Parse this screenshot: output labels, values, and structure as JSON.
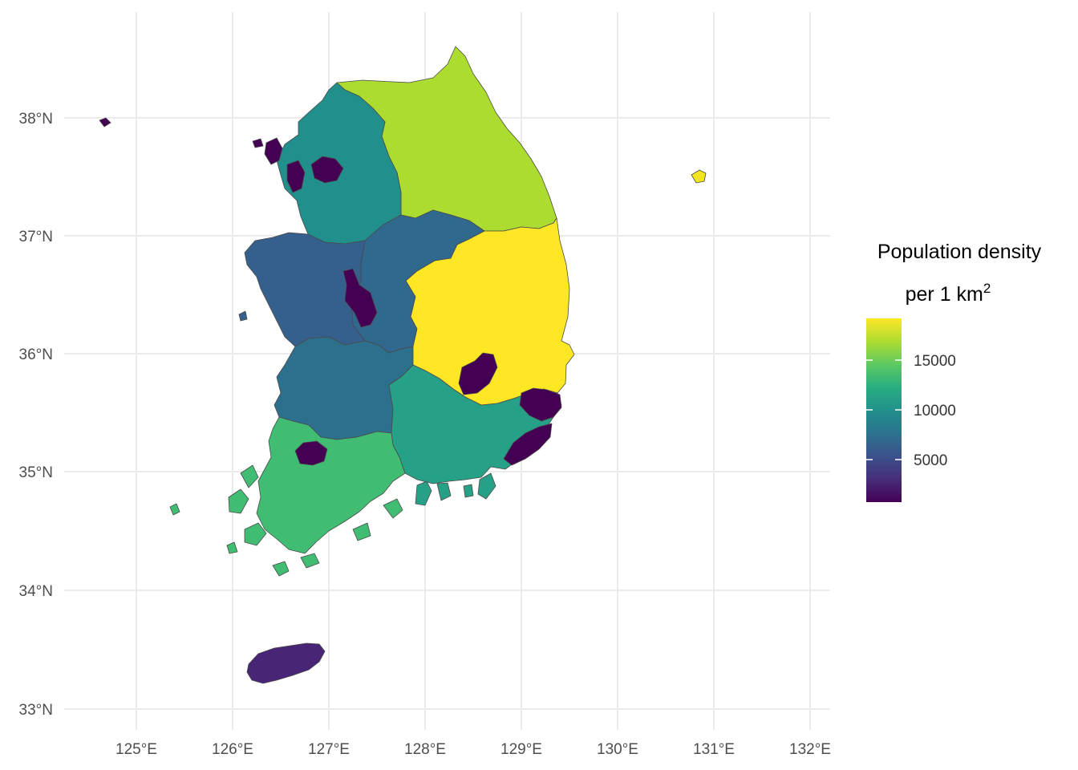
{
  "legend": {
    "title_line1": "Population density",
    "title_line2": "per 1 km",
    "title_superscript": "2",
    "labels": [
      "15000",
      "10000",
      "5000"
    ]
  },
  "axes": {
    "x_ticks": [
      "125°E",
      "126°E",
      "127°E",
      "128°E",
      "129°E",
      "130°E",
      "131°E",
      "132°E"
    ],
    "y_ticks": [
      "38°N",
      "37°N",
      "36°N",
      "35°N",
      "34°N",
      "33°N"
    ]
  },
  "colors": {
    "gangwon": "#addc30",
    "gyeonggi": "#21908d",
    "chungbuk": "#31688e",
    "chungnam": "#35608d",
    "jeonbuk": "#2d708e",
    "gyeongbuk": "#fde725",
    "gyeongnam": "#27a088",
    "jeonnam": "#40bd72",
    "jeju": "#482576",
    "cities": "#440154",
    "dokdo": "#f2e51d",
    "grid": "#ebebeb"
  }
}
